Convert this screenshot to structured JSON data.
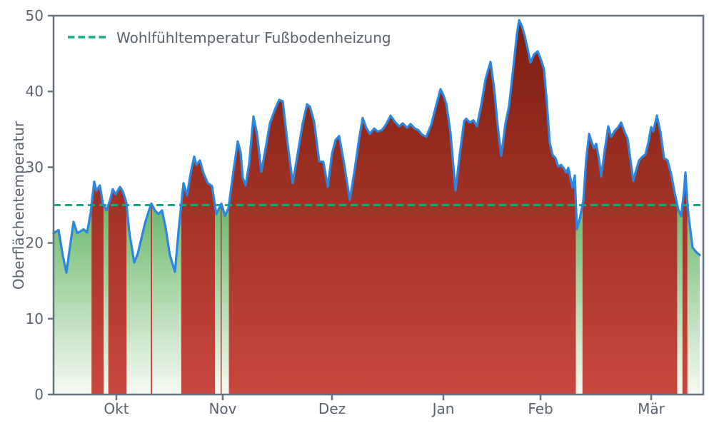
{
  "chart_data": {
    "type": "area",
    "title": "",
    "ylabel": "Oberflächentemperatur",
    "xlabel": "",
    "ylim": [
      0,
      50
    ],
    "yticks": [
      0,
      10,
      20,
      30,
      40,
      50
    ],
    "xticks": [
      {
        "label": "Okt",
        "pos": 0.0967
      },
      {
        "label": "Nov",
        "pos": 0.2604
      },
      {
        "label": "Dez",
        "pos": 0.4286
      },
      {
        "label": "Jan",
        "pos": 0.6
      },
      {
        "label": "Feb",
        "pos": 0.7495
      },
      {
        "label": "Mär",
        "pos": 0.9198
      }
    ],
    "legend": {
      "label": "Wohlfühltemperatur Fußbodenheizung",
      "line_style": "dashed",
      "position": "upper left"
    },
    "threshold": {
      "value": 25,
      "color": "#0fb184"
    },
    "series_name": "Oberflächentemperatur",
    "line_color": "#2b86e0",
    "fill_above_threshold": {
      "top": "#7a1e10",
      "bottom": "#c8473e"
    },
    "fill_below_threshold": {
      "top": "#6ab86c",
      "bottom": "#f6faf3"
    },
    "axis_color": "#667080",
    "text_color": "#5a626d",
    "grid": false,
    "points": [
      [
        0.0,
        21.3
      ],
      [
        0.0077,
        21.7
      ],
      [
        0.0143,
        18.3
      ],
      [
        0.0198,
        16.1
      ],
      [
        0.0253,
        19.5
      ],
      [
        0.0308,
        22.8
      ],
      [
        0.0363,
        21.3
      ],
      [
        0.0407,
        21.5
      ],
      [
        0.0462,
        21.8
      ],
      [
        0.0516,
        21.4
      ],
      [
        0.0571,
        24.0
      ],
      [
        0.0626,
        28.1
      ],
      [
        0.0659,
        26.9
      ],
      [
        0.0714,
        27.6
      ],
      [
        0.0758,
        25.2
      ],
      [
        0.0813,
        24.3
      ],
      [
        0.0868,
        25.6
      ],
      [
        0.0912,
        27.1
      ],
      [
        0.0956,
        26.4
      ],
      [
        0.1022,
        27.4
      ],
      [
        0.1066,
        26.8
      ],
      [
        0.1121,
        25.3
      ],
      [
        0.1165,
        21.5
      ],
      [
        0.1242,
        17.4
      ],
      [
        0.1297,
        18.6
      ],
      [
        0.1352,
        20.6
      ],
      [
        0.1407,
        22.6
      ],
      [
        0.1462,
        24.1
      ],
      [
        0.1505,
        25.2
      ],
      [
        0.156,
        24.3
      ],
      [
        0.1615,
        23.8
      ],
      [
        0.167,
        24.3
      ],
      [
        0.1725,
        22.0
      ],
      [
        0.1791,
        18.4
      ],
      [
        0.1868,
        16.2
      ],
      [
        0.1923,
        21.5
      ],
      [
        0.2,
        27.9
      ],
      [
        0.2055,
        26.3
      ],
      [
        0.211,
        29.2
      ],
      [
        0.2165,
        31.4
      ],
      [
        0.2198,
        30.3
      ],
      [
        0.2253,
        30.9
      ],
      [
        0.2308,
        29.2
      ],
      [
        0.2374,
        27.9
      ],
      [
        0.244,
        27.5
      ],
      [
        0.2505,
        23.8
      ],
      [
        0.2549,
        24.6
      ],
      [
        0.2582,
        25.2
      ],
      [
        0.2637,
        23.6
      ],
      [
        0.2692,
        24.6
      ],
      [
        0.2769,
        29.5
      ],
      [
        0.2835,
        33.4
      ],
      [
        0.2879,
        32.0
      ],
      [
        0.2912,
        28.6
      ],
      [
        0.2956,
        27.6
      ],
      [
        0.3011,
        30.5
      ],
      [
        0.3077,
        36.7
      ],
      [
        0.3132,
        34.4
      ],
      [
        0.3198,
        29.4
      ],
      [
        0.3264,
        32.5
      ],
      [
        0.333,
        35.8
      ],
      [
        0.3407,
        37.6
      ],
      [
        0.3473,
        38.9
      ],
      [
        0.3527,
        38.7
      ],
      [
        0.3604,
        33.0
      ],
      [
        0.3681,
        27.9
      ],
      [
        0.3758,
        31.8
      ],
      [
        0.3835,
        35.8
      ],
      [
        0.3901,
        38.3
      ],
      [
        0.3945,
        38.0
      ],
      [
        0.4011,
        36.0
      ],
      [
        0.4088,
        30.8
      ],
      [
        0.4154,
        30.7
      ],
      [
        0.422,
        27.4
      ],
      [
        0.4286,
        31.8
      ],
      [
        0.4341,
        33.6
      ],
      [
        0.4396,
        34.1
      ],
      [
        0.4473,
        30.4
      ],
      [
        0.456,
        25.7
      ],
      [
        0.4637,
        29.8
      ],
      [
        0.4703,
        33.8
      ],
      [
        0.4758,
        36.5
      ],
      [
        0.4813,
        35.2
      ],
      [
        0.4868,
        34.4
      ],
      [
        0.4934,
        35.1
      ],
      [
        0.4989,
        34.7
      ],
      [
        0.5055,
        34.9
      ],
      [
        0.5121,
        35.7
      ],
      [
        0.5187,
        36.8
      ],
      [
        0.5253,
        36.0
      ],
      [
        0.5319,
        35.4
      ],
      [
        0.5374,
        35.8
      ],
      [
        0.544,
        35.2
      ],
      [
        0.5495,
        35.7
      ],
      [
        0.556,
        35.1
      ],
      [
        0.5615,
        34.9
      ],
      [
        0.567,
        34.3
      ],
      [
        0.5736,
        34.0
      ],
      [
        0.5813,
        35.6
      ],
      [
        0.589,
        38.2
      ],
      [
        0.5956,
        40.3
      ],
      [
        0.6,
        39.5
      ],
      [
        0.6044,
        38.4
      ],
      [
        0.611,
        34.5
      ],
      [
        0.6187,
        26.9
      ],
      [
        0.6253,
        31.8
      ],
      [
        0.6319,
        36.1
      ],
      [
        0.6352,
        36.4
      ],
      [
        0.6407,
        35.9
      ],
      [
        0.6462,
        36.2
      ],
      [
        0.6516,
        35.4
      ],
      [
        0.6582,
        38.2
      ],
      [
        0.6648,
        41.6
      ],
      [
        0.6725,
        43.9
      ],
      [
        0.678,
        40.5
      ],
      [
        0.6835,
        35.5
      ],
      [
        0.689,
        31.5
      ],
      [
        0.6956,
        35.8
      ],
      [
        0.7011,
        38.1
      ],
      [
        0.7077,
        43.2
      ],
      [
        0.7132,
        47.6
      ],
      [
        0.7165,
        49.4
      ],
      [
        0.7209,
        48.6
      ],
      [
        0.7253,
        47.3
      ],
      [
        0.7297,
        45.6
      ],
      [
        0.7341,
        43.8
      ],
      [
        0.7396,
        44.9
      ],
      [
        0.7451,
        45.3
      ],
      [
        0.7505,
        44.1
      ],
      [
        0.7549,
        42.9
      ],
      [
        0.7593,
        38.5
      ],
      [
        0.7637,
        33.2
      ],
      [
        0.7681,
        31.6
      ],
      [
        0.7725,
        31.2
      ],
      [
        0.7769,
        30.1
      ],
      [
        0.7813,
        30.3
      ],
      [
        0.7857,
        29.8
      ],
      [
        0.789,
        29.3
      ],
      [
        0.7923,
        29.9
      ],
      [
        0.7967,
        28.1
      ],
      [
        0.7989,
        27.3
      ],
      [
        0.8022,
        28.9
      ],
      [
        0.8055,
        21.8
      ],
      [
        0.8099,
        23.2
      ],
      [
        0.8154,
        25.6
      ],
      [
        0.8198,
        31.0
      ],
      [
        0.8242,
        34.4
      ],
      [
        0.8286,
        33.2
      ],
      [
        0.8319,
        32.5
      ],
      [
        0.8352,
        33.1
      ],
      [
        0.8396,
        31.0
      ],
      [
        0.8429,
        28.8
      ],
      [
        0.8484,
        32.3
      ],
      [
        0.8538,
        35.4
      ],
      [
        0.8582,
        34.0
      ],
      [
        0.8637,
        34.8
      ],
      [
        0.8692,
        35.3
      ],
      [
        0.8736,
        35.9
      ],
      [
        0.8791,
        34.6
      ],
      [
        0.8835,
        33.8
      ],
      [
        0.8879,
        31.0
      ],
      [
        0.8923,
        28.2
      ],
      [
        0.8967,
        29.6
      ],
      [
        0.9011,
        30.9
      ],
      [
        0.9066,
        31.4
      ],
      [
        0.911,
        31.7
      ],
      [
        0.9154,
        33.2
      ],
      [
        0.9198,
        35.3
      ],
      [
        0.9231,
        34.7
      ],
      [
        0.9286,
        36.8
      ],
      [
        0.9341,
        34.6
      ],
      [
        0.9396,
        31.2
      ],
      [
        0.9451,
        30.9
      ],
      [
        0.9505,
        29.1
      ],
      [
        0.956,
        26.6
      ],
      [
        0.9615,
        24.4
      ],
      [
        0.9659,
        23.5
      ],
      [
        0.9703,
        26.8
      ],
      [
        0.9725,
        29.3
      ],
      [
        0.9758,
        24.8
      ],
      [
        0.9791,
        22.4
      ],
      [
        0.9835,
        19.4
      ],
      [
        0.989,
        18.8
      ],
      [
        0.9945,
        18.4
      ]
    ]
  }
}
